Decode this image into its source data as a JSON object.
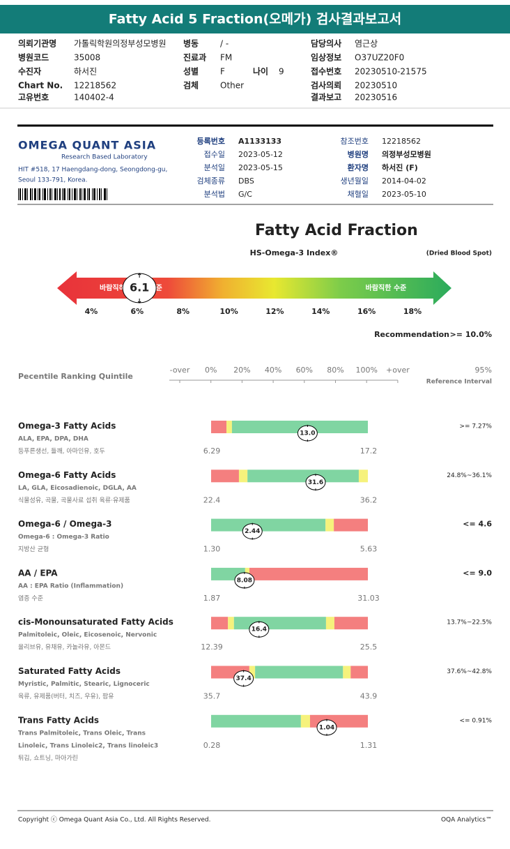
{
  "header": {
    "title": "Fatty Acid 5 Fraction(오메가) 검사결과보고서"
  },
  "patient_info": {
    "left": [
      [
        "의뢰기관명",
        "가톨릭학원의정부성모병원"
      ],
      [
        "병원코드",
        "35008"
      ],
      [
        "수진자",
        "하서진"
      ],
      [
        "Chart No.",
        "12218562"
      ],
      [
        "고유번호",
        "140402-4"
      ]
    ],
    "middle": [
      [
        "병동",
        "/ -"
      ],
      [
        "진료과",
        "FM"
      ],
      [
        "성별",
        "F"
      ],
      [
        "검체",
        "Other"
      ]
    ],
    "age": [
      "나이",
      "9"
    ],
    "right": [
      [
        "담당의사",
        "염근상"
      ],
      [
        "임상정보",
        "O37UZ20F0"
      ],
      [
        "접수번호",
        "20230510-21575"
      ],
      [
        "검사의뢰",
        "20230510"
      ],
      [
        "결과보고",
        "20230516"
      ]
    ]
  },
  "lab": {
    "name": "OMEGA QUANT ASIA",
    "tagline": "Research Based Laboratory",
    "address": [
      "HIT #518, 17 Haengdang-dong, Seongdong-gu,",
      "Seoul 133-791, Korea."
    ],
    "fields_left": [
      {
        "label": "등록번호",
        "value": "A1133133",
        "bold": true
      },
      {
        "label": "접수일",
        "value": "2023-05-12"
      },
      {
        "label": "분석일",
        "value": "2023-05-15"
      },
      {
        "label": "검체종류",
        "value": "DBS"
      },
      {
        "label": "분석법",
        "value": "G/C"
      }
    ],
    "fields_right": [
      {
        "label": "참조번호",
        "value": "12218562"
      },
      {
        "label": "병원명",
        "value": "의정부성모병원",
        "bold": true
      },
      {
        "label": "환자명",
        "value": "하서진 (F)",
        "bold": true
      },
      {
        "label": "생년월일",
        "value": "2014-04-02"
      },
      {
        "label": "채혈일",
        "value": "2023-05-10"
      }
    ]
  },
  "index": {
    "title": "Fatty Acid Fraction",
    "name": "HS-Omega-3 Index®",
    "specimen": "(Dried Blood Spot)",
    "low_label": "바람직하지 않은 수준",
    "high_label": "바람직한 수준",
    "xlim": [
      4,
      18
    ],
    "xticks": [
      {
        "value": 4,
        "label": "4%"
      },
      {
        "value": 6,
        "label": "6%"
      },
      {
        "value": 8,
        "label": "8%"
      },
      {
        "value": 10,
        "label": "10%"
      },
      {
        "value": 12,
        "label": "12%"
      },
      {
        "value": 14,
        "label": "14%"
      },
      {
        "value": 16,
        "label": "16%"
      },
      {
        "value": 18,
        "label": "18%"
      }
    ],
    "value": 6.1,
    "recommendation_label": "Recommendation",
    "recommendation": ">= 10.0%"
  },
  "percentile": {
    "title": "Pecentile Ranking Quintile",
    "scale_labels": [
      "-over",
      "0%",
      "20%",
      "40%",
      "60%",
      "80%",
      "100%",
      "+over"
    ],
    "ref_title": "95%",
    "ref_subtitle": "Reference Interval"
  },
  "colors": {
    "low": "#f47f7f",
    "warn": "#f6f27c",
    "ok": "#80d5a2"
  },
  "results": [
    {
      "name": "Omega-3 Fatty Acids",
      "details": [
        "ALA, EPA, DPA, DHA"
      ],
      "foods": "등푸른생선, 들깨, 아마인유, 호두",
      "min": 6.29,
      "max": 17.2,
      "value": {
        "value": 13,
        "label": "13.0"
      },
      "reference": ">= 7.27%",
      "breaks": [
        7.36,
        7.74
      ],
      "zones": [
        "low",
        "warn",
        "ok"
      ]
    },
    {
      "name": "Omega-6 Fatty Acids",
      "details": [
        "LA, GLA, Eicosadienoic, DGLA, AA"
      ],
      "foods": "식물성유, 곡물, 곡물사료 섭취 육류·유제품",
      "min": 22.4,
      "max": 36.2,
      "value": 31.6,
      "reference": "24.8%~36.1%",
      "breaks": [
        24.85,
        25.6,
        35.4
      ],
      "zones": [
        "low",
        "warn",
        "ok",
        "warn"
      ]
    },
    {
      "name": "Omega-6 / Omega-3",
      "details": [
        "Omega-6 : Omega-3 Ratio"
      ],
      "foods": "지방산 균형",
      "min": {
        "value": 1.3,
        "label": "1.30"
      },
      "max": 5.63,
      "value": 2.44,
      "reference": "<= 4.6",
      "reference_bold": true,
      "breaks": [
        4.46,
        4.69
      ],
      "zones": [
        "ok",
        "warn",
        "low"
      ]
    },
    {
      "name": "AA / EPA",
      "details": [
        "AA : EPA Ratio (Inflammation)"
      ],
      "foods": "염증 수준",
      "min": 1.87,
      "max": 31.03,
      "value": 8.08,
      "reference": "<= 9.0",
      "reference_bold": true,
      "breaks": [
        8.2,
        9.0
      ],
      "zones": [
        "ok",
        "warn",
        "low"
      ]
    },
    {
      "name": "cis-Monounsaturated Fatty Acids",
      "details": [
        "Palmitoleic, Oleic, Eicosenoic, Nervonic"
      ],
      "foods": "올리브유, 유채유, 카놀라유, 아몬드",
      "min": 12.39,
      "max": 25.5,
      "value": 16.4,
      "reference": "13.7%~22.5%",
      "breaks": [
        13.8,
        14.3,
        22.0,
        22.7
      ],
      "zones": [
        "low",
        "warn",
        "ok",
        "warn",
        "low"
      ]
    },
    {
      "name": "Saturated Fatty Acids",
      "details": [
        "Myristic, Palmitic, Stearic, Lignoceric"
      ],
      "foods": "육류, 유제품(버터, 치즈, 우유), 팜유",
      "min": 35.7,
      "max": 43.9,
      "value": 37.4,
      "reference": "37.6%~42.8%",
      "breaks": [
        37.7,
        38.0,
        42.6,
        43.0
      ],
      "zones": [
        "low",
        "warn",
        "ok",
        "warn",
        "low"
      ]
    },
    {
      "name": "Trans Fatty Acids",
      "details": [
        "Trans Palmitoleic, Trans Oleic, Trans",
        "Linoleic, Trans Linoleic2, Trans linoleic3"
      ],
      "foods": "튀김, 쇼트닝, 마아가린",
      "min": 0.28,
      "max": 1.31,
      "value": 1.04,
      "reference": "<= 0.91%",
      "breaks": [
        0.87,
        0.93
      ],
      "zones": [
        "ok",
        "warn",
        "low"
      ]
    }
  ],
  "footer": {
    "copyright": "Copyright ⓒ Omega Quant Asia Co., Ltd. All Rights Reserved.",
    "brand": "OQA Analytics™"
  }
}
